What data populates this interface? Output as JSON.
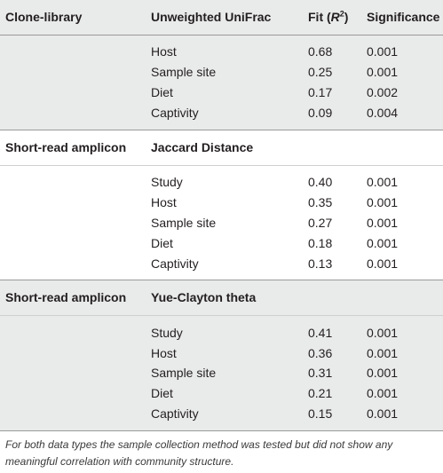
{
  "header": {
    "col1": "Clone-library",
    "col2": "Unweighted UniFrac",
    "col3_prefix": "Fit (",
    "col3_var": "R",
    "col3_sup": "2",
    "col3_suffix": ")",
    "col4": "Significance"
  },
  "section1": {
    "rows": [
      {
        "label": "Host",
        "fit": "0.68",
        "sig": "0.001"
      },
      {
        "label": "Sample site",
        "fit": "0.25",
        "sig": "0.001"
      },
      {
        "label": "Diet",
        "fit": "0.17",
        "sig": "0.002"
      },
      {
        "label": "Captivity",
        "fit": "0.09",
        "sig": "0.004"
      }
    ]
  },
  "section2": {
    "title": "Short-read amplicon",
    "metric": "Jaccard Distance",
    "rows": [
      {
        "label": "Study",
        "fit": "0.40",
        "sig": "0.001"
      },
      {
        "label": "Host",
        "fit": "0.35",
        "sig": "0.001"
      },
      {
        "label": "Sample site",
        "fit": "0.27",
        "sig": "0.001"
      },
      {
        "label": "Diet",
        "fit": "0.18",
        "sig": "0.001"
      },
      {
        "label": "Captivity",
        "fit": "0.13",
        "sig": "0.001"
      }
    ]
  },
  "section3": {
    "title": "Short-read amplicon",
    "metric": "Yue-Clayton theta",
    "rows": [
      {
        "label": "Study",
        "fit": "0.41",
        "sig": "0.001"
      },
      {
        "label": "Host",
        "fit": "0.36",
        "sig": "0.001"
      },
      {
        "label": "Sample site",
        "fit": "0.31",
        "sig": "0.001"
      },
      {
        "label": "Diet",
        "fit": "0.21",
        "sig": "0.001"
      },
      {
        "label": "Captivity",
        "fit": "0.15",
        "sig": "0.001"
      }
    ]
  },
  "footnote": "For both data types the sample collection method was tested but did not show any meaningful correlation with community structure.",
  "colors": {
    "section_background": "#e9eaea",
    "text": "#231f20"
  }
}
